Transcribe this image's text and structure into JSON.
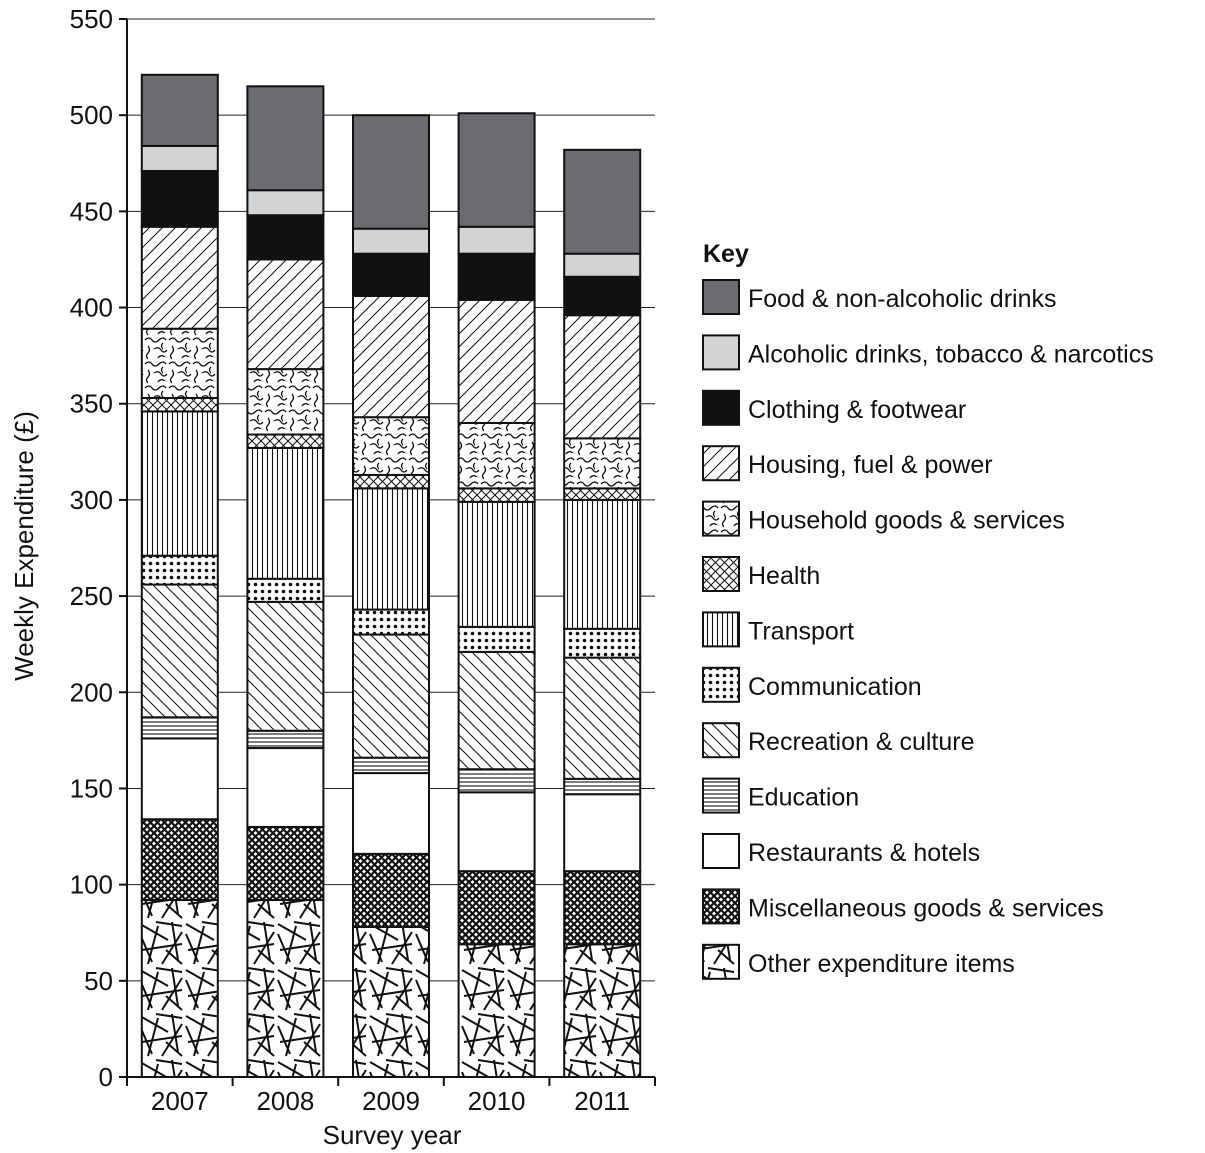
{
  "chart_data": {
    "type": "bar",
    "stacked": true,
    "xlabel": "Survey year",
    "ylabel": "Weekly Expenditure (£)",
    "ylim": [
      0,
      550
    ],
    "yticks": [
      0,
      50,
      100,
      150,
      200,
      250,
      300,
      350,
      400,
      450,
      500,
      550
    ],
    "grid": true,
    "legend_title": "Key",
    "legend_position": "right",
    "categories": [
      "2007",
      "2008",
      "2009",
      "2010",
      "2011"
    ],
    "series": [
      {
        "name": "Other expenditure items",
        "pattern": "random-lines",
        "values": [
          92,
          92,
          78,
          69,
          69
        ]
      },
      {
        "name": "Miscellaneous goods & services",
        "pattern": "dense-crosshatch",
        "values": [
          42,
          38,
          38,
          38,
          38
        ]
      },
      {
        "name": "Restaurants & hotels",
        "pattern": "white",
        "values": [
          42,
          41,
          42,
          41,
          40
        ]
      },
      {
        "name": "Education",
        "pattern": "horizontal-lines",
        "values": [
          11,
          9,
          8,
          12,
          8
        ]
      },
      {
        "name": "Recreation & culture",
        "pattern": "backslash",
        "values": [
          69,
          67,
          64,
          61,
          63
        ]
      },
      {
        "name": "Communication",
        "pattern": "dots",
        "values": [
          15,
          12,
          13,
          13,
          15
        ]
      },
      {
        "name": "Transport",
        "pattern": "vertical-lines",
        "values": [
          75,
          68,
          63,
          65,
          67
        ]
      },
      {
        "name": "Health",
        "pattern": "crosshatch",
        "values": [
          7,
          7,
          7,
          7,
          6
        ]
      },
      {
        "name": "Household goods & services",
        "pattern": "squiggle",
        "values": [
          36,
          34,
          30,
          34,
          26
        ]
      },
      {
        "name": "Housing, fuel & power",
        "pattern": "slash",
        "values": [
          53,
          57,
          63,
          64,
          64
        ]
      },
      {
        "name": "Clothing & footwear",
        "pattern": "black",
        "values": [
          29,
          23,
          22,
          24,
          20
        ]
      },
      {
        "name": "Alcoholic drinks, tobacco & narcotics",
        "pattern": "light-grey",
        "values": [
          13,
          13,
          13,
          14,
          12
        ]
      },
      {
        "name": "Food & non-alcoholic drinks",
        "pattern": "dark-grey",
        "values": [
          37,
          54,
          59,
          59,
          54
        ]
      }
    ]
  }
}
